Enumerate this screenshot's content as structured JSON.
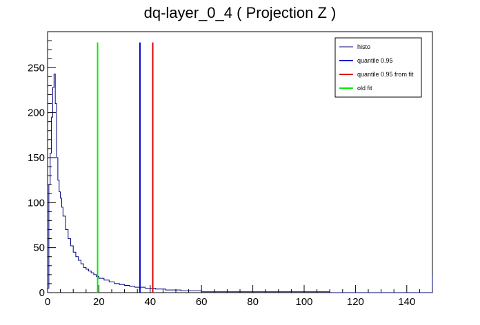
{
  "chart_data": {
    "type": "line",
    "title": "dq-layer_0_4 ( Projection Z )",
    "xlabel": "",
    "ylabel": "",
    "xlim": [
      0,
      150
    ],
    "ylim": [
      0,
      290
    ],
    "x_ticks": [
      0,
      20,
      40,
      60,
      80,
      100,
      120,
      140
    ],
    "y_ticks": [
      0,
      50,
      100,
      150,
      200,
      250
    ],
    "grid": false,
    "legend_position": "top-right",
    "series": [
      {
        "name": "histo",
        "color": "#000080",
        "style": "histogram",
        "x": [
          0,
          0.5,
          1,
          1.5,
          2,
          2.5,
          3,
          3.5,
          4,
          4.5,
          5,
          5.5,
          6,
          7,
          8,
          9,
          10,
          11,
          12,
          13,
          14,
          15,
          16,
          17,
          18,
          19,
          20,
          22,
          24,
          26,
          28,
          30,
          32,
          34,
          36,
          38,
          40,
          42,
          44,
          46,
          48,
          50,
          52,
          55,
          58,
          60,
          65,
          70,
          75,
          80,
          85,
          90,
          95,
          100,
          110,
          120,
          130,
          140,
          149,
          150
        ],
        "values": [
          5,
          120,
          155,
          195,
          228,
          243,
          210,
          150,
          125,
          112,
          105,
          95,
          85,
          70,
          60,
          52,
          45,
          40,
          36,
          32,
          28,
          26,
          24,
          22,
          20,
          18,
          16,
          14,
          12,
          10,
          9,
          8,
          7,
          6,
          6,
          5,
          5,
          4,
          4,
          3,
          3,
          3,
          2,
          2,
          2,
          1,
          1,
          1,
          1,
          1,
          1,
          1,
          1,
          1,
          0,
          0,
          0,
          0,
          0,
          20
        ]
      },
      {
        "name": "quantile 0.95",
        "color": "#0000cc",
        "style": "vline",
        "x": [
          36
        ],
        "values": [
          278
        ]
      },
      {
        "name": "quantile 0.95 from fit",
        "color": "#dd0000",
        "style": "vline",
        "x": [
          41
        ],
        "values": [
          278
        ]
      },
      {
        "name": "old fit",
        "color": "#00ee00",
        "style": "vline",
        "x": [
          19.5
        ],
        "values": [
          278
        ]
      }
    ]
  }
}
